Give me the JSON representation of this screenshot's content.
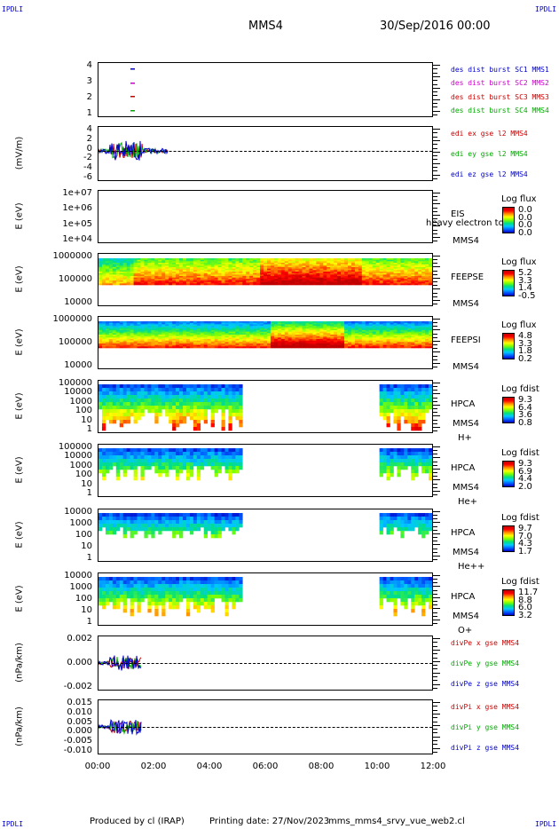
{
  "corners": {
    "tl": "IPDLI",
    "tr": "IPDLI",
    "bl": "IPDLI",
    "br": "IPDLI"
  },
  "header": {
    "spacecraft": "MMS4",
    "date": "30/Sep/2016 00:00"
  },
  "footer": {
    "produced": "Produced by cl (IRAP)",
    "printing": "Printing date: 27/Nov/2023",
    "file": "mms_mms4_srvy_vue_web2.cl"
  },
  "colors": {
    "c1": "#0000cc",
    "c2": "#cc00cc",
    "c3": "#cc0000",
    "c4": "#00aa00"
  },
  "chart_data": [
    {
      "type": "scatter",
      "panel": "burst",
      "yticks": [
        "4",
        "3",
        "2",
        "1"
      ],
      "legend": [
        "des dist burst SC1 MMS1",
        "des dist burst SC2 MMS2",
        "des dist burst SC3 MMS3",
        "des dist burst SC4 MMS4"
      ]
    },
    {
      "type": "line",
      "panel": "edi",
      "ylabel": "(mV/m)",
      "yticks": [
        "4",
        "2",
        "0",
        "-2",
        "-4",
        "-6"
      ],
      "legend": [
        "edi ex gse l2 MMS4",
        "edi ey gse l2 MMS4",
        "edi ez gse l2 MMS4"
      ]
    },
    {
      "type": "heatmap",
      "panel": "eis",
      "ylabel": "E (eV)",
      "yticks": [
        "1e+07",
        "1e+06",
        "1e+05",
        "1e+04"
      ],
      "instrument": [
        "EIS",
        "MMS4"
      ],
      "overlay": "heavy electron tof",
      "cbar_title": "Log flux",
      "cbar_values": [
        "0.0",
        "0.0",
        "0.0",
        "0.0"
      ]
    },
    {
      "type": "heatmap",
      "panel": "feepse",
      "ylabel": "E (eV)",
      "yticks": [
        "1000000",
        "100000",
        "10000"
      ],
      "instrument": [
        "FEEPSE",
        "MMS4"
      ],
      "cbar_title": "Log flux",
      "cbar_values": [
        "5.2",
        "3.3",
        "1.4",
        "-0.5"
      ]
    },
    {
      "type": "heatmap",
      "panel": "feepsi",
      "ylabel": "E (eV)",
      "yticks": [
        "1000000",
        "100000",
        "10000"
      ],
      "instrument": [
        "FEEPSI",
        "MMS4"
      ],
      "cbar_title": "Log flux",
      "cbar_values": [
        "4.8",
        "3.3",
        "1.8",
        "0.2"
      ]
    },
    {
      "type": "heatmap",
      "panel": "hpca_h",
      "ylabel": "E (eV)",
      "yticks": [
        "100000",
        "10000",
        "1000",
        "100",
        "10",
        "1"
      ],
      "instrument": [
        "HPCA",
        "MMS4",
        "H+"
      ],
      "cbar_title": "Log fdist",
      "cbar_values": [
        "9.3",
        "6.4",
        "3.6",
        "0.8"
      ]
    },
    {
      "type": "heatmap",
      "panel": "hpca_he",
      "ylabel": "E (eV)",
      "yticks": [
        "100000",
        "10000",
        "1000",
        "100",
        "10",
        "1"
      ],
      "instrument": [
        "HPCA",
        "MMS4",
        "He+"
      ],
      "cbar_title": "Log fdist",
      "cbar_values": [
        "9.3",
        "6.9",
        "4.4",
        "2.0"
      ]
    },
    {
      "type": "heatmap",
      "panel": "hpca_hepp",
      "ylabel": "E (eV)",
      "yticks": [
        "10000",
        "1000",
        "100",
        "10",
        "1"
      ],
      "instrument": [
        "HPCA",
        "MMS4",
        "He++"
      ],
      "cbar_title": "Log fdist",
      "cbar_values": [
        "9.7",
        "7.0",
        "4.3",
        "1.7"
      ]
    },
    {
      "type": "heatmap",
      "panel": "hpca_o",
      "ylabel": "E (eV)",
      "yticks": [
        "10000",
        "1000",
        "100",
        "10",
        "1"
      ],
      "instrument": [
        "HPCA",
        "MMS4",
        "O+"
      ],
      "cbar_title": "Log fdist",
      "cbar_values": [
        "11.7",
        "8.8",
        "6.0",
        "3.2"
      ]
    },
    {
      "type": "line",
      "panel": "divpe",
      "ylabel": "(nPa/km)",
      "yticks": [
        "0.002",
        "0.000",
        "-0.002"
      ],
      "legend": [
        "divPe x gse MMS4",
        "divPe y gse MMS4",
        "divPe z gse MMS4"
      ]
    },
    {
      "type": "line",
      "panel": "divpi",
      "ylabel": "(nPa/km)",
      "yticks": [
        "0.015",
        "0.010",
        "0.005",
        "0.000",
        "-0.005",
        "-0.010"
      ],
      "legend": [
        "divPi x gse MMS4",
        "divPi y gse MMS4",
        "divPi z gse MMS4"
      ]
    }
  ],
  "xaxis": {
    "ticks": [
      "00:00",
      "02:00",
      "04:00",
      "06:00",
      "08:00",
      "10:00",
      "12:00"
    ]
  }
}
